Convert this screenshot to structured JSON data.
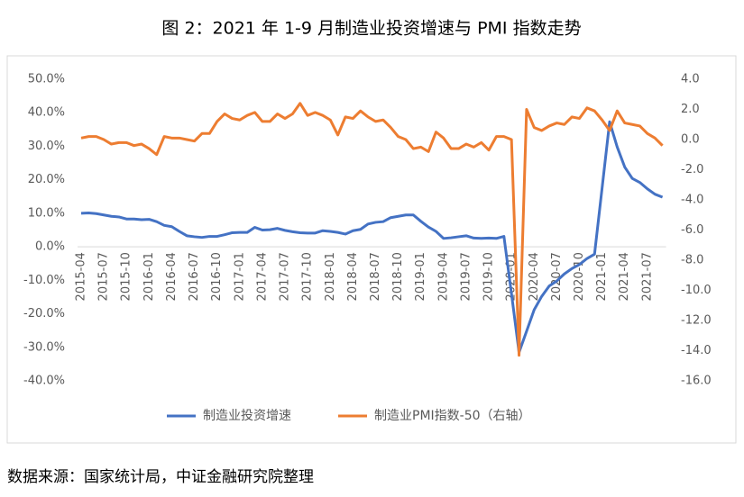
{
  "chart_data": {
    "type": "line",
    "title": "图 2：2021 年 1-9 月制造业投资增速与 PMI 指数走势",
    "source": "数据来源：国家统计局，中证金融研究院整理",
    "categories": [
      "2015-04",
      null,
      null,
      "2015-07",
      null,
      null,
      "2015-10",
      null,
      null,
      "2016-01",
      null,
      null,
      "2016-04",
      null,
      null,
      "2016-07",
      null,
      null,
      "2016-10",
      null,
      null,
      "2017-01",
      null,
      null,
      "2017-04",
      null,
      null,
      "2017-07",
      null,
      null,
      "2017-10",
      null,
      null,
      "2018-01",
      null,
      null,
      "2018-04",
      null,
      null,
      "2018-07",
      null,
      null,
      "2018-10",
      null,
      null,
      "2019-01",
      null,
      null,
      "2019-04",
      null,
      null,
      "2019-07",
      null,
      null,
      "2019-10",
      null,
      null,
      "2020-01",
      null,
      null,
      "2020-04",
      null,
      null,
      "2020-07",
      null,
      null,
      "2020-10",
      null,
      null,
      "2021-01",
      null,
      null,
      "2021-04",
      null,
      null,
      "2021-07",
      null,
      null
    ],
    "series": [
      {
        "name": "制造业投资增速",
        "color": "#4472c4",
        "axis": "y",
        "values": [
          10.0,
          10.1,
          9.9,
          9.5,
          9.1,
          8.9,
          8.3,
          8.3,
          8.1,
          8.2,
          7.5,
          6.4,
          6.0,
          4.6,
          3.3,
          3.0,
          2.8,
          3.1,
          3.1,
          3.6,
          4.2,
          4.3,
          4.3,
          5.8,
          5.0,
          5.1,
          5.5,
          4.9,
          4.5,
          4.2,
          4.1,
          4.1,
          4.8,
          4.6,
          4.3,
          3.8,
          4.8,
          5.2,
          6.8,
          7.3,
          7.5,
          8.7,
          9.1,
          9.5,
          9.5,
          7.6,
          5.9,
          4.6,
          2.5,
          2.7,
          3.0,
          3.3,
          2.6,
          2.5,
          2.6,
          2.5,
          3.1,
          -14.0,
          -31.5,
          -25.2,
          -18.8,
          -14.8,
          -11.7,
          -10.2,
          -8.1,
          -6.5,
          -5.3,
          -3.5,
          -2.2,
          17.5,
          37.3,
          29.8,
          23.8,
          20.4,
          19.2,
          17.3,
          15.7,
          14.8
        ]
      },
      {
        "name": "制造业PMI指数-50（右轴）",
        "color": "#ed7d31",
        "axis": "y2",
        "values": [
          0.1,
          0.2,
          0.2,
          0.0,
          -0.3,
          -0.2,
          -0.2,
          -0.4,
          -0.3,
          -0.6,
          -1.0,
          0.2,
          0.1,
          0.1,
          0.0,
          -0.1,
          0.4,
          0.4,
          1.2,
          1.7,
          1.4,
          1.3,
          1.6,
          1.8,
          1.2,
          1.2,
          1.7,
          1.4,
          1.7,
          2.4,
          1.6,
          1.8,
          1.6,
          1.3,
          0.3,
          1.5,
          1.4,
          1.9,
          1.5,
          1.2,
          1.3,
          0.8,
          0.2,
          0.0,
          -0.6,
          -0.5,
          -0.8,
          0.5,
          0.1,
          -0.6,
          -0.6,
          -0.3,
          -0.5,
          -0.2,
          -0.7,
          0.2,
          0.2,
          0.0,
          -14.3,
          2.0,
          0.8,
          0.6,
          0.9,
          1.1,
          1.0,
          1.5,
          1.4,
          2.1,
          1.9,
          1.3,
          0.6,
          1.9,
          1.1,
          1.0,
          0.9,
          0.4,
          0.1,
          -0.4
        ]
      }
    ],
    "ylim": [
      -40,
      50
    ],
    "yticks": [
      {
        "value": 50,
        "label": "50.0%"
      },
      {
        "value": 40,
        "label": "40.0%"
      },
      {
        "value": 30,
        "label": "30.0%"
      },
      {
        "value": 20,
        "label": "20.0%"
      },
      {
        "value": 10,
        "label": "10.0%"
      },
      {
        "value": 0,
        "label": "0.0%"
      },
      {
        "value": -10,
        "label": "-10.0%"
      },
      {
        "value": -20,
        "label": "-20.0%"
      },
      {
        "value": -30,
        "label": "-30.0%"
      },
      {
        "value": -40,
        "label": "-40.0%"
      }
    ],
    "y2lim": [
      -16,
      4
    ],
    "y2ticks": [
      {
        "value": 4,
        "label": "4.0"
      },
      {
        "value": 2,
        "label": "2.0"
      },
      {
        "value": 0,
        "label": "0.0"
      },
      {
        "value": -2,
        "label": "-2.0"
      },
      {
        "value": -4,
        "label": "-4.0"
      },
      {
        "value": -6,
        "label": "-6.0"
      },
      {
        "value": -8,
        "label": "-8.0"
      },
      {
        "value": -10,
        "label": "-10.0"
      },
      {
        "value": -12,
        "label": "-12.0"
      },
      {
        "value": -14,
        "label": "-14.0"
      },
      {
        "value": -16,
        "label": "-16.0"
      }
    ],
    "legend": "bottom"
  }
}
